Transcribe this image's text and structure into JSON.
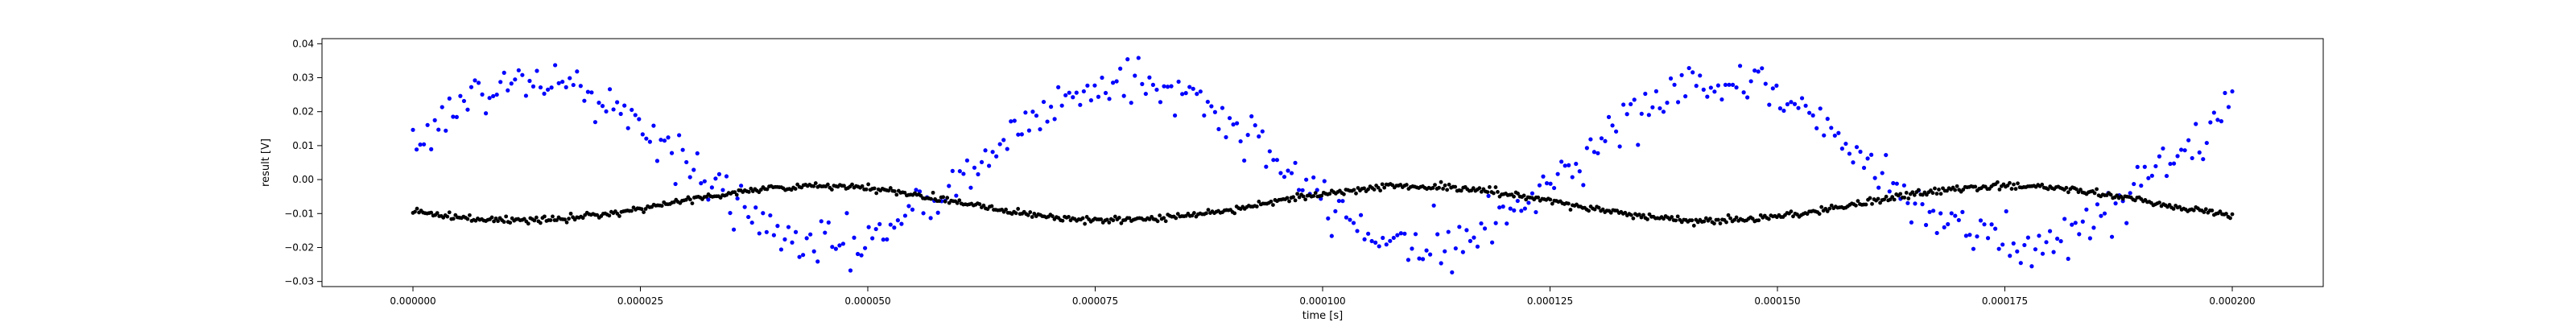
{
  "chart_data": {
    "type": "scatter",
    "title": "",
    "xlabel": "time [s]",
    "ylabel": "result [V]",
    "xlim": [
      -1e-05,
      0.00021
    ],
    "ylim": [
      -0.0315,
      0.0415
    ],
    "x_ticks": [
      0.0,
      2.5e-05,
      5e-05,
      7.5e-05,
      0.0001,
      0.000125,
      0.00015,
      0.000175,
      0.0002
    ],
    "x_tick_labels": [
      "0.000000",
      "0.000025",
      "0.000050",
      "0.000075",
      "0.000100",
      "0.000125",
      "0.000150",
      "0.000175",
      "0.000200"
    ],
    "y_ticks": [
      -0.03,
      -0.02,
      -0.01,
      0.0,
      0.01,
      0.02,
      0.03,
      0.04
    ],
    "y_tick_labels": [
      "−0.03",
      "−0.02",
      "−0.01",
      "0.00",
      "0.01",
      "0.02",
      "0.03",
      "0.04"
    ],
    "grid": false,
    "legend": "none",
    "series": [
      {
        "color": "#0000ff",
        "x_start": 0.0,
        "x_end": 0.0002,
        "n_points": 500,
        "model": "sinusoid with noise",
        "offset": 0.005,
        "amplitude": 0.024,
        "period": 6.52e-05,
        "peak_at": 1.35e-05,
        "noise": 0.0035,
        "x": [
          0.0,
          5e-06,
          1e-05,
          1.35e-05,
          2e-05,
          3e-05,
          4e-05,
          5e-05,
          6e-05,
          7e-05,
          8e-05,
          9e-05,
          0.0001,
          0.00011,
          0.00012,
          0.00013,
          0.00014,
          0.00015,
          0.00016,
          0.00017,
          0.00018,
          0.00019,
          0.0002
        ],
        "y": [
          0.015,
          0.022,
          0.027,
          0.029,
          0.025,
          0.008,
          -0.012,
          -0.019,
          -0.008,
          0.018,
          0.028,
          0.02,
          0.0,
          -0.017,
          -0.013,
          0.008,
          0.026,
          0.026,
          0.01,
          -0.009,
          -0.019,
          -0.014,
          0.008
        ]
      },
      {
        "color": "#000000",
        "x_start": 0.0,
        "x_end": 0.0002,
        "n_points": 900,
        "model": "slow sinusoid with small noise",
        "offset": -0.007,
        "amplitude": 0.005,
        "period": 6.55e-05,
        "peak_at": 4.45e-05,
        "noise": 0.0005,
        "x": [
          0.0,
          1e-05,
          2e-05,
          3e-05,
          4e-05,
          5e-05,
          6e-05,
          7e-05,
          8e-05,
          9e-05,
          0.0001,
          0.00011,
          0.00012,
          0.00013,
          0.00014,
          0.00015,
          0.00016,
          0.00017,
          0.00018,
          0.00019,
          0.0002
        ],
        "y": [
          -0.009,
          -0.011,
          -0.012,
          -0.007,
          -0.003,
          -0.002,
          -0.005,
          -0.011,
          -0.011,
          -0.008,
          -0.004,
          -0.002,
          -0.004,
          -0.009,
          -0.012,
          -0.01,
          -0.006,
          -0.003,
          -0.002,
          -0.005,
          -0.009
        ]
      }
    ]
  }
}
